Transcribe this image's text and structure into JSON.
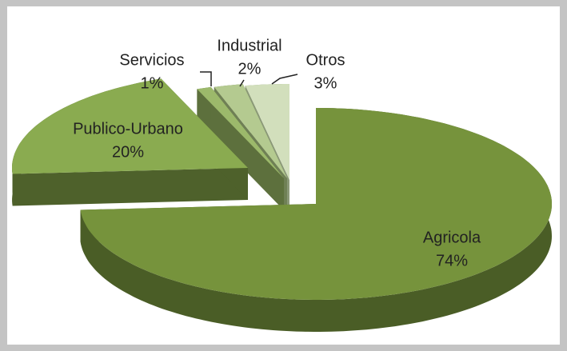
{
  "chart_data": {
    "type": "pie3d",
    "categories": [
      "Agricola",
      "Publico-Urbano",
      "Servicios",
      "Industrial",
      "Otros"
    ],
    "values": [
      74,
      20,
      1,
      2,
      3
    ],
    "value_labels": [
      "74%",
      "20%",
      "1%",
      "2%",
      "3%"
    ],
    "colors": [
      "#76933c",
      "#8aab50",
      "#9cb96b",
      "#b4ca90",
      "#d2dfbc"
    ],
    "side_colors": [
      "#4a5d26",
      "#4e612b",
      "#5d703d",
      "#6f8055",
      "#8a9877"
    ]
  }
}
